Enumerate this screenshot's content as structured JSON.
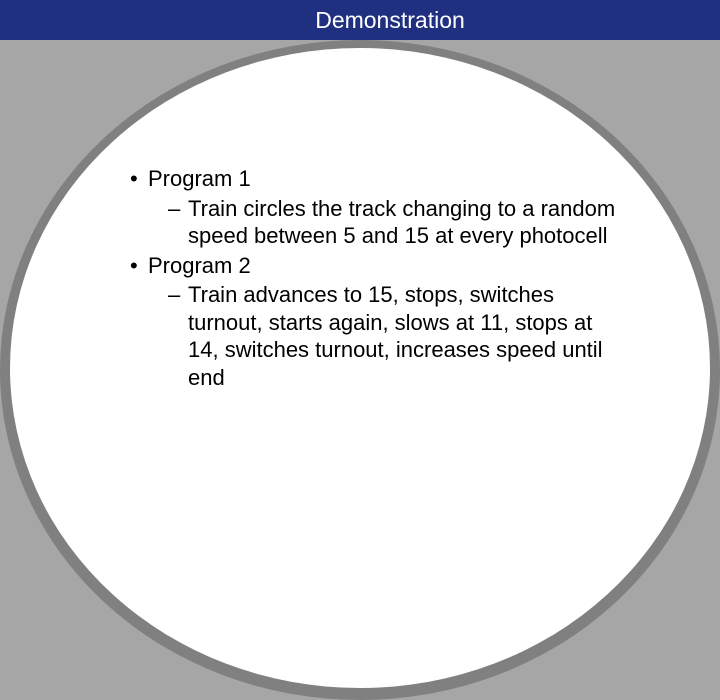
{
  "slide": {
    "title": "Demonstration",
    "colors": {
      "header_bg": "#203080",
      "header_text": "#ffffff",
      "slide_bg": "#a6a6a6",
      "ellipse_fill": "#ffffff",
      "ellipse_shadow": "#808080",
      "body_text": "#000000"
    },
    "typography": {
      "title_fontsize": 23,
      "body_fontsize": 22,
      "font_family": "Arial"
    },
    "bullets": [
      {
        "label": "Program 1",
        "sub": "Train circles the track changing to a random speed between 5 and 15 at every photocell"
      },
      {
        "label": "Program 2",
        "sub": "Train advances to 15, stops, switches turnout, starts again, slows at 11, stops at 14, switches turnout, increases speed until end"
      }
    ]
  }
}
